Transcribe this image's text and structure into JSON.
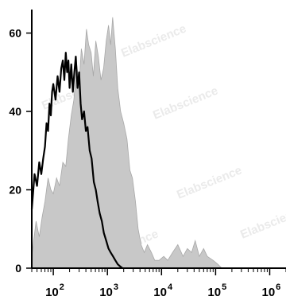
{
  "chart_data": {
    "type": "area",
    "title": "",
    "xlabel": "",
    "ylabel": "",
    "x_scale": "log",
    "xlim": [
      40,
      2000000
    ],
    "ylim": [
      0,
      66
    ],
    "x_ticks": [
      {
        "value": 100,
        "base": "10",
        "exp": "2"
      },
      {
        "value": 1000,
        "base": "10",
        "exp": "3"
      },
      {
        "value": 10000,
        "base": "10",
        "exp": "4"
      },
      {
        "value": 100000,
        "base": "10",
        "exp": "5"
      },
      {
        "value": 1000000,
        "base": "10",
        "exp": "6"
      }
    ],
    "y_ticks": [
      0,
      20,
      40,
      60
    ],
    "watermark": "Elabscience",
    "series": [
      {
        "color": "#c8c8c8",
        "style": "filled",
        "points": [
          [
            40,
            3
          ],
          [
            48,
            12
          ],
          [
            55,
            8
          ],
          [
            62,
            13
          ],
          [
            70,
            17
          ],
          [
            80,
            23
          ],
          [
            90,
            20
          ],
          [
            100,
            19
          ],
          [
            115,
            23
          ],
          [
            130,
            21
          ],
          [
            150,
            27
          ],
          [
            170,
            26
          ],
          [
            190,
            33
          ],
          [
            215,
            39
          ],
          [
            240,
            43
          ],
          [
            270,
            52
          ],
          [
            300,
            47
          ],
          [
            330,
            56
          ],
          [
            370,
            52
          ],
          [
            410,
            61
          ],
          [
            450,
            57
          ],
          [
            500,
            55
          ],
          [
            550,
            49
          ],
          [
            610,
            58
          ],
          [
            680,
            54
          ],
          [
            760,
            48
          ],
          [
            850,
            51
          ],
          [
            950,
            58
          ],
          [
            1050,
            62
          ],
          [
            1150,
            57
          ],
          [
            1250,
            64
          ],
          [
            1400,
            56
          ],
          [
            1550,
            46
          ],
          [
            1750,
            40
          ],
          [
            2000,
            37
          ],
          [
            2300,
            33
          ],
          [
            2600,
            25
          ],
          [
            2900,
            23
          ],
          [
            3300,
            17
          ],
          [
            3700,
            10
          ],
          [
            4200,
            6
          ],
          [
            4800,
            4
          ],
          [
            5500,
            6
          ],
          [
            6500,
            4
          ],
          [
            7500,
            2
          ],
          [
            9000,
            2
          ],
          [
            11000,
            3
          ],
          [
            13000,
            2
          ],
          [
            16000,
            4
          ],
          [
            20000,
            6
          ],
          [
            25000,
            3
          ],
          [
            30000,
            5
          ],
          [
            36000,
            4
          ],
          [
            42000,
            7
          ],
          [
            50000,
            3
          ],
          [
            60000,
            5
          ],
          [
            70000,
            3
          ],
          [
            90000,
            2
          ],
          [
            110000,
            1
          ],
          [
            130000,
            0
          ]
        ]
      },
      {
        "color": "#000000",
        "style": "line",
        "points": [
          [
            40,
            15
          ],
          [
            45,
            24
          ],
          [
            50,
            21
          ],
          [
            55,
            27
          ],
          [
            60,
            24
          ],
          [
            65,
            28
          ],
          [
            70,
            31
          ],
          [
            75,
            37
          ],
          [
            80,
            35
          ],
          [
            85,
            42
          ],
          [
            90,
            39
          ],
          [
            95,
            45
          ],
          [
            100,
            47
          ],
          [
            110,
            43
          ],
          [
            120,
            49
          ],
          [
            130,
            45
          ],
          [
            140,
            51
          ],
          [
            150,
            53
          ],
          [
            160,
            48
          ],
          [
            170,
            55
          ],
          [
            180,
            50
          ],
          [
            190,
            53
          ],
          [
            200,
            46
          ],
          [
            215,
            52
          ],
          [
            230,
            45
          ],
          [
            245,
            50
          ],
          [
            260,
            54
          ],
          [
            280,
            46
          ],
          [
            300,
            50
          ],
          [
            320,
            42
          ],
          [
            340,
            38
          ],
          [
            370,
            40
          ],
          [
            400,
            35
          ],
          [
            430,
            36
          ],
          [
            470,
            30
          ],
          [
            510,
            28
          ],
          [
            560,
            22
          ],
          [
            610,
            20
          ],
          [
            660,
            17
          ],
          [
            720,
            14
          ],
          [
            790,
            12
          ],
          [
            860,
            9
          ],
          [
            950,
            7
          ],
          [
            1050,
            5
          ],
          [
            1150,
            4
          ],
          [
            1270,
            3
          ],
          [
            1400,
            2
          ],
          [
            1550,
            1
          ],
          [
            1700,
            0.5
          ],
          [
            1900,
            0
          ]
        ]
      }
    ]
  }
}
